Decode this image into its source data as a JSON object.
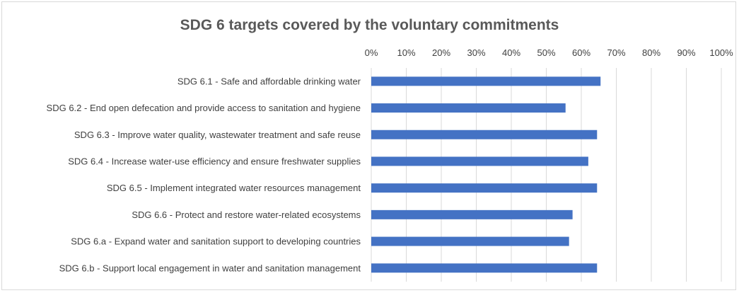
{
  "chart_data": {
    "type": "bar",
    "orientation": "horizontal",
    "title": "SDG 6 targets covered by the voluntary commitments",
    "xlabel": "",
    "ylabel": "",
    "xlim": [
      0,
      100
    ],
    "x_tick_labels": [
      "0%",
      "10%",
      "20%",
      "30%",
      "40%",
      "50%",
      "60%",
      "70%",
      "80%",
      "90%",
      "100%"
    ],
    "x_axis_position": "top",
    "grid": true,
    "legend": "none",
    "bar_color": "#4472c4",
    "categories": [
      "SDG 6.1 - Safe and affordable drinking water",
      "SDG 6.2 - End open defecation and provide access to sanitation and hygiene",
      "SDG 6.3 - Improve water quality, wastewater treatment and safe reuse",
      "SDG 6.4 - Increase water-use efficiency and ensure freshwater supplies",
      "SDG 6.5 - Implement integrated water resources management",
      "SDG 6.6 - Protect and restore water-related ecosystems",
      "SDG 6.a - Expand water and sanitation support to developing countries",
      "SDG 6.b - Support local engagement in water and sanitation management"
    ],
    "values": [
      65.5,
      55.5,
      64.5,
      62,
      64.5,
      57.5,
      56.5,
      64.5
    ]
  }
}
